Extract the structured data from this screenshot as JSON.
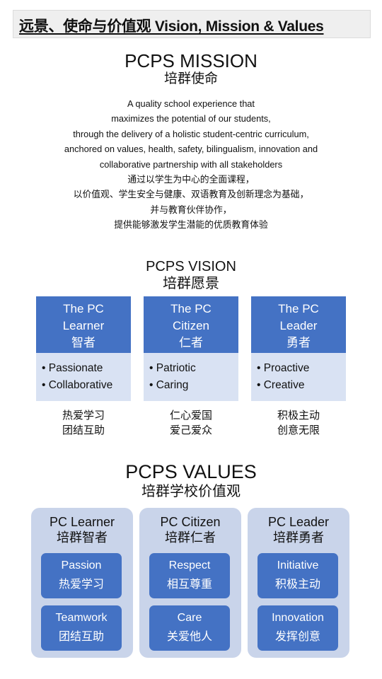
{
  "banner": "远景、使命与价值观 Vision, Mission & Values",
  "mission": {
    "title": "PCPS MISSION",
    "subtitle": "培群使命",
    "lines": [
      "A quality school experience that",
      "maximizes the potential of our students,",
      "through the delivery of a holistic student-centric curriculum,",
      "anchored on values, health, safety, bilingualism, innovation and",
      "collaborative partnership with all stakeholders",
      "通过以学生为中心的全面课程，",
      "以价值观、学生安全与健康、双语教育及创新理念为基础，",
      "并与教育伙伴协作，",
      "提供能够激发学生潜能的优质教育体验"
    ]
  },
  "vision": {
    "title": "PCPS VISION",
    "subtitle": "培群愿景",
    "columns": [
      {
        "head1": "The PC",
        "head2": "Learner",
        "head_cn": "智者",
        "bullets": [
          "• Passionate",
          "• Collaborative"
        ],
        "caption": [
          "热爱学习",
          "团结互助"
        ]
      },
      {
        "head1": "The PC",
        "head2": "Citizen",
        "head_cn": "仁者",
        "bullets": [
          "• Patriotic",
          "• Caring"
        ],
        "caption": [
          "仁心爱国",
          "爱己爱众"
        ]
      },
      {
        "head1": "The PC",
        "head2": "Leader",
        "head_cn": "勇者",
        "bullets": [
          "• Proactive",
          "• Creative"
        ],
        "caption": [
          "积极主动",
          "创意无限"
        ]
      }
    ]
  },
  "values": {
    "title": "PCPS VALUES",
    "subtitle": "培群学校价值观",
    "cards": [
      {
        "title": "PC Learner",
        "title_cn": "培群智者",
        "items": [
          {
            "en": "Passion",
            "cn": "热爱学习"
          },
          {
            "en": "Teamwork",
            "cn": "团结互助"
          }
        ]
      },
      {
        "title": "PC Citizen",
        "title_cn": "培群仁者",
        "items": [
          {
            "en": "Respect",
            "cn": "相互尊重"
          },
          {
            "en": "Care",
            "cn": "关爱他人"
          }
        ]
      },
      {
        "title": "PC Leader",
        "title_cn": "培群勇者",
        "items": [
          {
            "en": "Initiative",
            "cn": "积极主动"
          },
          {
            "en": "Innovation",
            "cn": "发挥创意"
          }
        ]
      }
    ]
  },
  "colors": {
    "accent_blue": "#4472c4",
    "light_blue": "#d9e2f3",
    "card_bg": "#c9d4ea",
    "banner_bg": "#efefef"
  }
}
